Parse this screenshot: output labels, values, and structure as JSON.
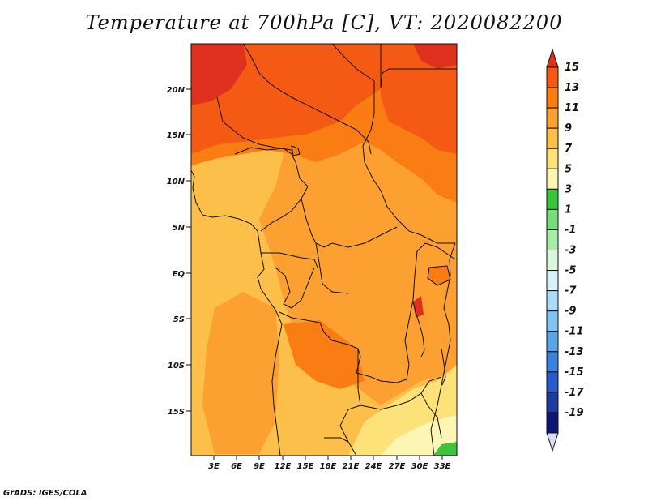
{
  "title": "Temperature at 700hPa [C], VT: 2020082200",
  "credit": "GrADS: IGES/COLA",
  "map": {
    "lat_ticks": [
      "20N",
      "15N",
      "10N",
      "5N",
      "EQ",
      "5S",
      "10S",
      "15S"
    ],
    "lon_ticks": [
      "3E",
      "6E",
      "9E",
      "12E",
      "15E",
      "18E",
      "21E",
      "24E",
      "27E",
      "30E",
      "33E"
    ]
  },
  "colorbar": {
    "labels": [
      "15",
      "13",
      "11",
      "9",
      "7",
      "5",
      "3",
      "1",
      "-1",
      "-3",
      "-5",
      "-7",
      "-9",
      "-11",
      "-13",
      "-15",
      "-17",
      "-19"
    ],
    "colors": [
      "#e0301e",
      "#f55a14",
      "#fa7d14",
      "#fca032",
      "#fcc04a",
      "#fde27a",
      "#fdf5b4",
      "#3cc43c",
      "#78dc78",
      "#a8eca8",
      "#d8f8d8",
      "#d6f2fa",
      "#aadcf5",
      "#82c3f0",
      "#5aa5e6",
      "#3c82dc",
      "#285ac8",
      "#1e3ca0",
      "#0f1478",
      "#dcdcf8"
    ]
  }
}
